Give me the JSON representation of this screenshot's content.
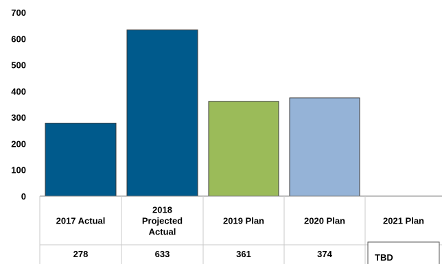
{
  "chart_data": {
    "type": "bar",
    "title": "",
    "xlabel": "",
    "ylabel": "",
    "ylim": [
      0,
      700
    ],
    "yticks": [
      0,
      100,
      200,
      300,
      400,
      500,
      600,
      700
    ],
    "grid": false,
    "categories": [
      [
        "2017 Actual"
      ],
      [
        "2018",
        "Projected",
        "Actual"
      ],
      [
        "2019 Plan"
      ],
      [
        "2020 Plan"
      ],
      [
        "2021 Plan"
      ]
    ],
    "values": [
      278,
      633,
      361,
      374,
      null
    ],
    "value_labels": [
      "278",
      "633",
      "361",
      "374",
      "TBD"
    ],
    "colors": [
      "#005a8c",
      "#005a8c",
      "#9bbb59",
      "#95b3d7",
      null
    ]
  }
}
